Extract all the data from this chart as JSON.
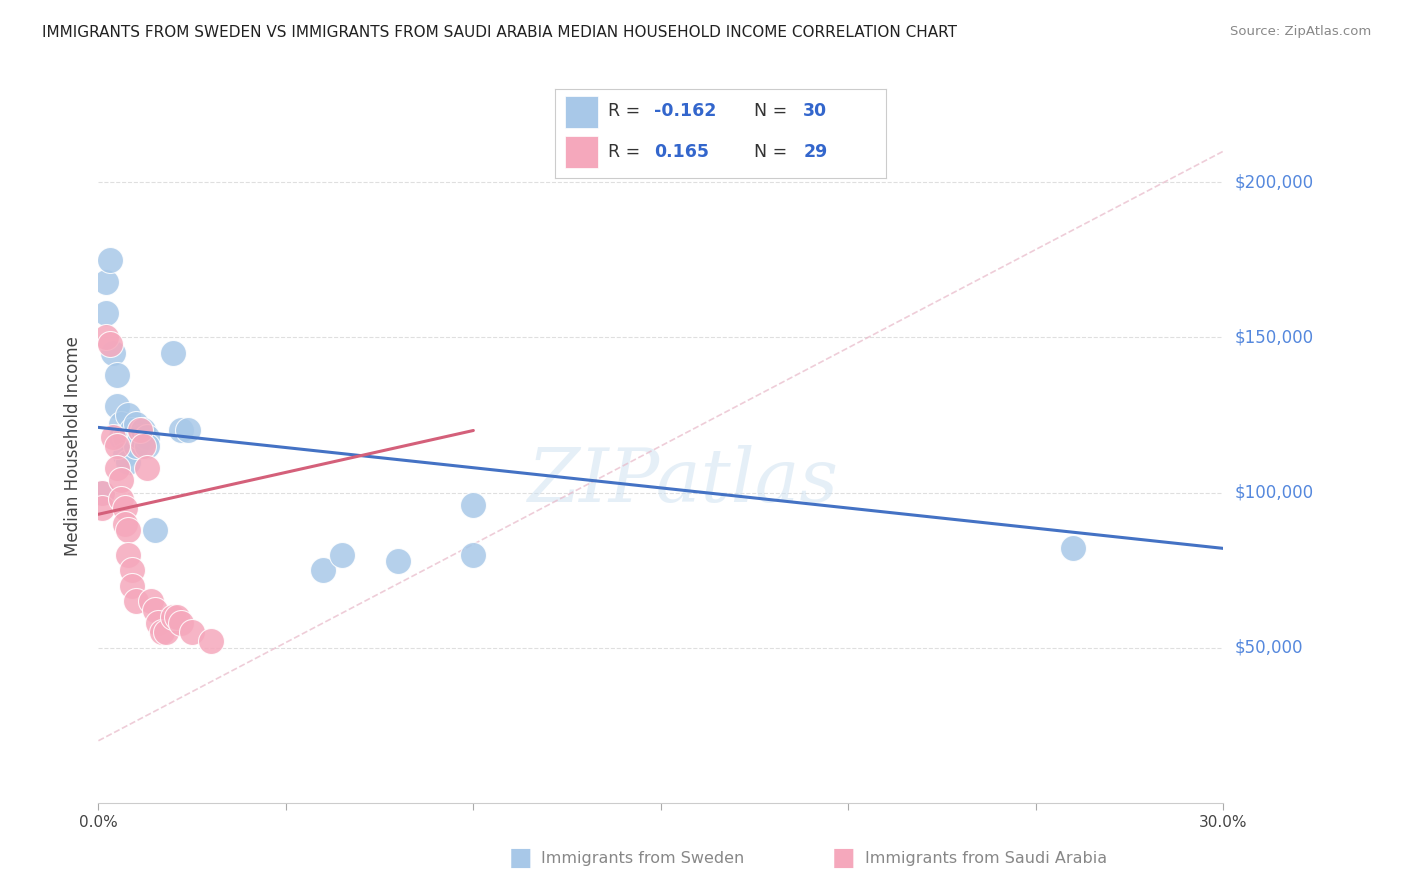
{
  "title": "IMMIGRANTS FROM SWEDEN VS IMMIGRANTS FROM SAUDI ARABIA MEDIAN HOUSEHOLD INCOME CORRELATION CHART",
  "source": "Source: ZipAtlas.com",
  "ylabel": "Median Household Income",
  "watermark": "ZIPatlas",
  "sweden_label": "Immigrants from Sweden",
  "saudi_label": "Immigrants from Saudi Arabia",
  "sweden_R": "-0.162",
  "sweden_N": "30",
  "saudi_R": "0.165",
  "saudi_N": "29",
  "sweden_color": "#a8c8e8",
  "saudi_color": "#f5a8bc",
  "sweden_line_color": "#4472c4",
  "saudi_line_color": "#d4607a",
  "dashed_line_color": "#e8b8c8",
  "background": "#ffffff",
  "grid_color": "#d8d8d8",
  "xlim": [
    0.0,
    0.3
  ],
  "ylim": [
    0,
    230000
  ],
  "ytick_vals": [
    50000,
    100000,
    150000,
    200000
  ],
  "ytick_labels": [
    "$50,000",
    "$100,000",
    "$150,000",
    "$200,000"
  ],
  "xtick_vals": [
    0.0,
    0.05,
    0.1,
    0.15,
    0.2,
    0.25,
    0.3
  ],
  "sweden_x": [
    0.001,
    0.002,
    0.002,
    0.003,
    0.004,
    0.005,
    0.005,
    0.006,
    0.006,
    0.007,
    0.007,
    0.008,
    0.008,
    0.009,
    0.01,
    0.01,
    0.011,
    0.012,
    0.013,
    0.013,
    0.015,
    0.02,
    0.022,
    0.024,
    0.06,
    0.065,
    0.08,
    0.1,
    0.1,
    0.26
  ],
  "sweden_y": [
    100000,
    158000,
    168000,
    175000,
    145000,
    138000,
    128000,
    122000,
    118000,
    118000,
    112000,
    110000,
    125000,
    120000,
    115000,
    122000,
    118000,
    120000,
    118000,
    115000,
    88000,
    145000,
    120000,
    120000,
    75000,
    80000,
    78000,
    96000,
    80000,
    82000
  ],
  "saudi_x": [
    0.001,
    0.001,
    0.002,
    0.003,
    0.004,
    0.005,
    0.005,
    0.006,
    0.006,
    0.007,
    0.007,
    0.008,
    0.008,
    0.009,
    0.009,
    0.01,
    0.011,
    0.012,
    0.013,
    0.014,
    0.015,
    0.016,
    0.017,
    0.018,
    0.02,
    0.021,
    0.022,
    0.025,
    0.03
  ],
  "saudi_y": [
    100000,
    95000,
    150000,
    148000,
    118000,
    115000,
    108000,
    104000,
    98000,
    95000,
    90000,
    88000,
    80000,
    75000,
    70000,
    65000,
    120000,
    115000,
    108000,
    65000,
    62000,
    58000,
    55000,
    55000,
    60000,
    60000,
    58000,
    55000,
    52000
  ],
  "sweden_line_x": [
    0.0,
    0.3
  ],
  "sweden_line_y": [
    121000,
    82000
  ],
  "saudi_line_x": [
    0.0,
    0.1
  ],
  "saudi_line_y": [
    93000,
    120000
  ]
}
